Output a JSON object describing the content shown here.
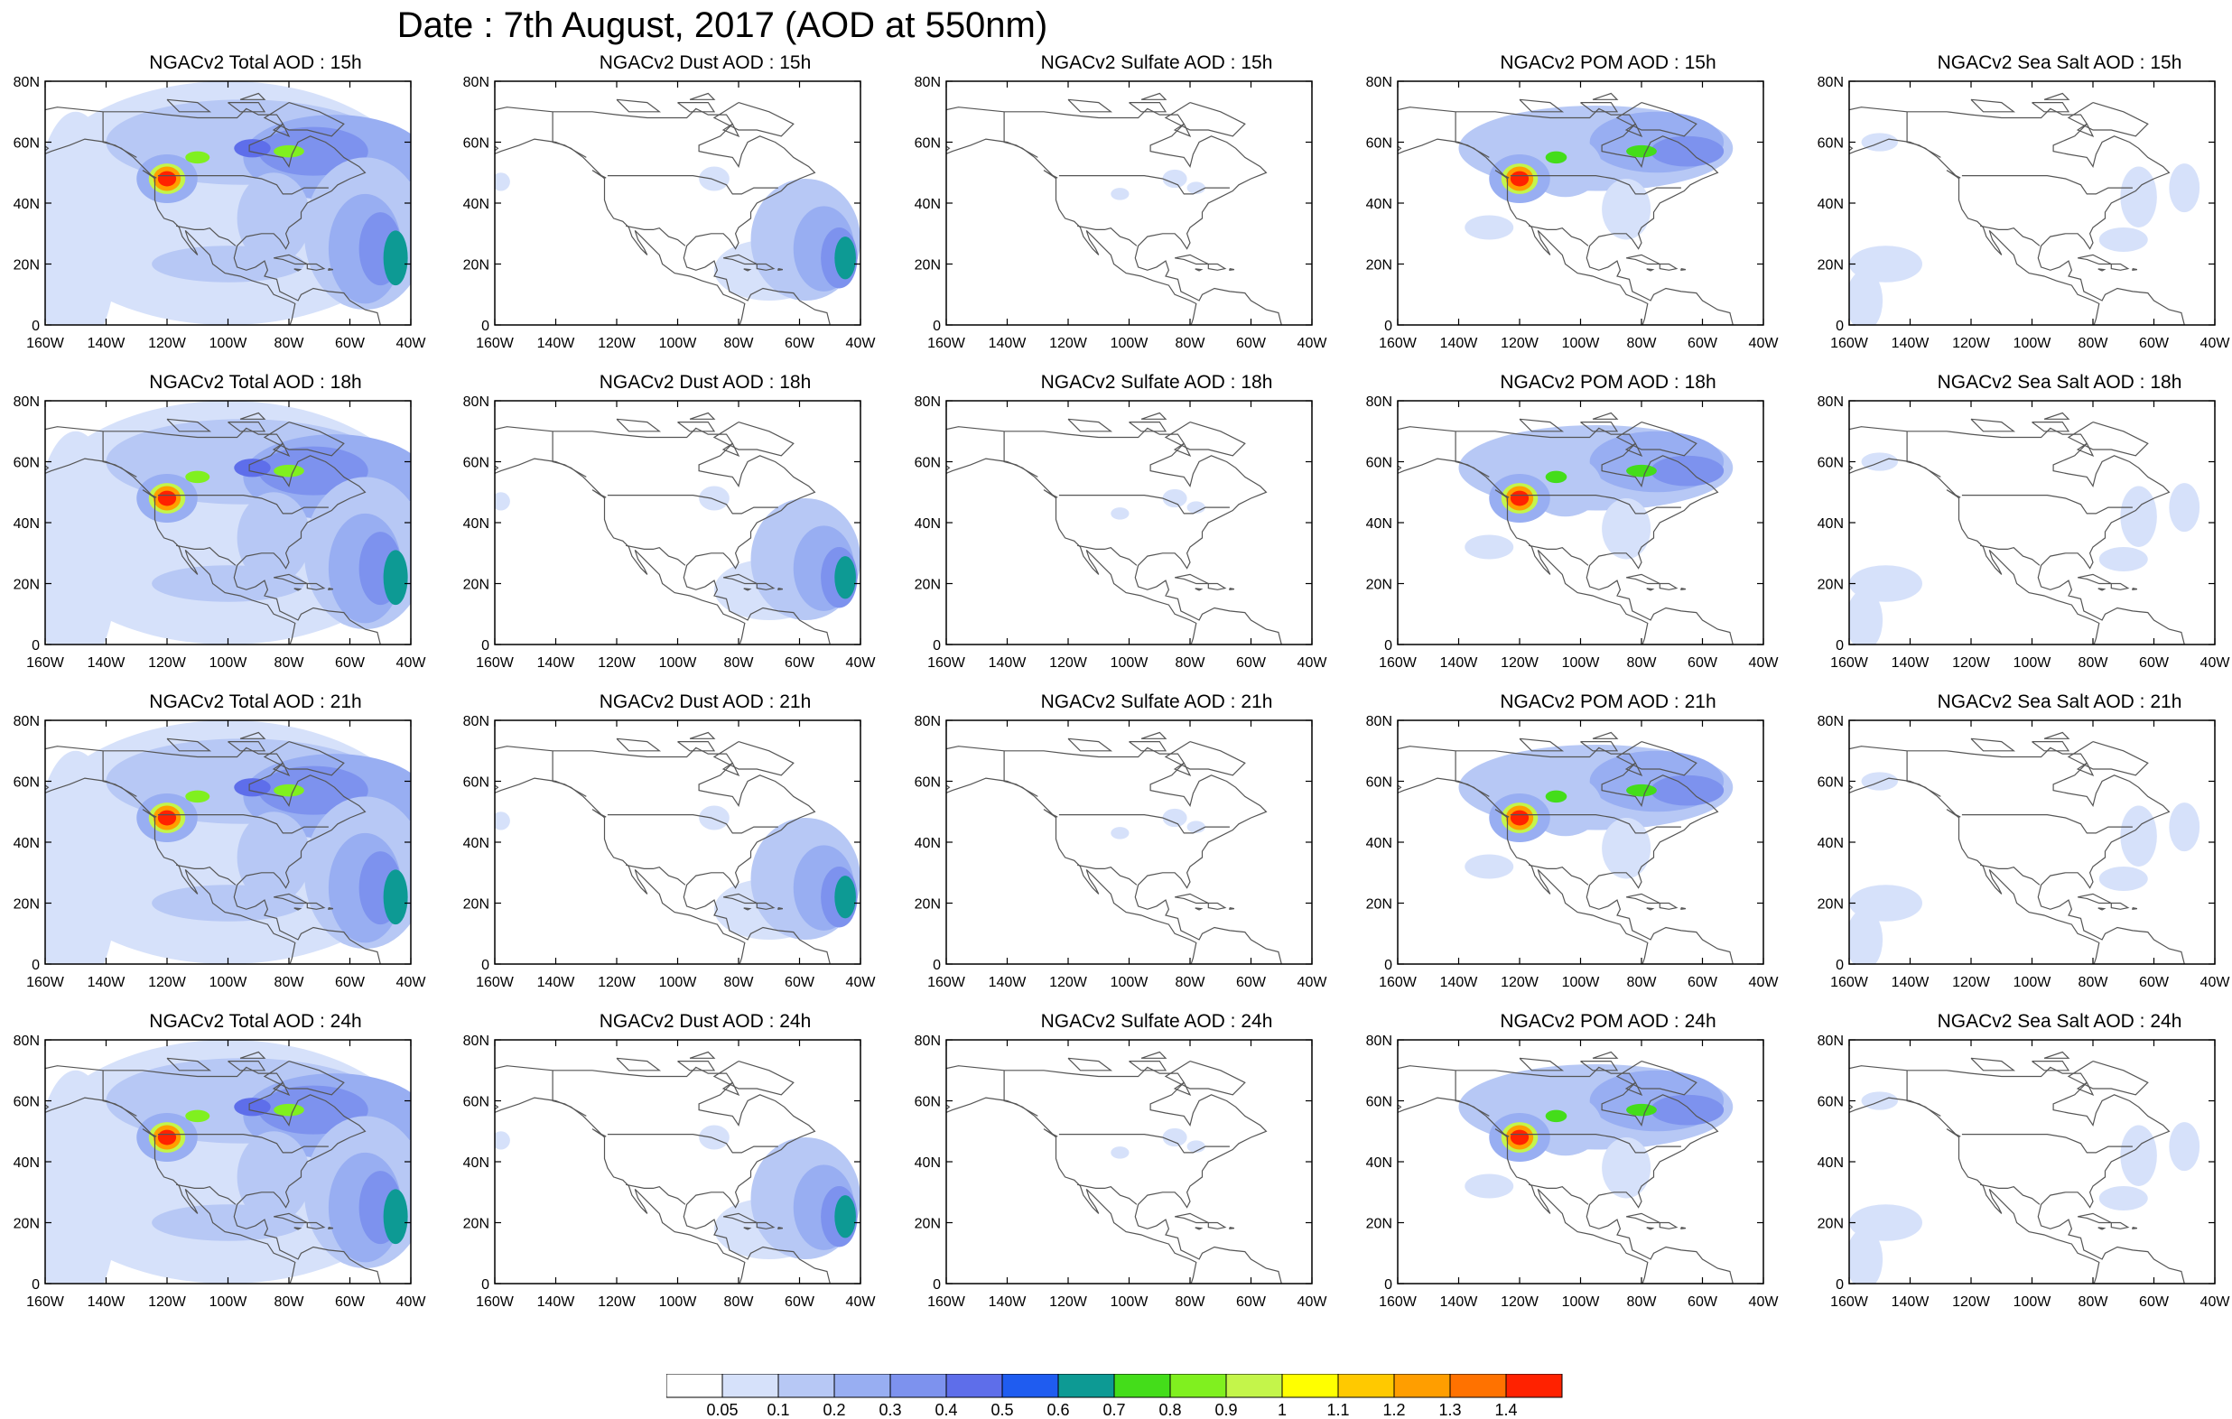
{
  "title": "Date : 7th August, 2017 (AOD at 550nm)",
  "x_ticks": [
    "160W",
    "140W",
    "120W",
    "100W",
    "80W",
    "60W",
    "40W"
  ],
  "y_ticks": [
    "80N",
    "60N",
    "40N",
    "20N",
    "0"
  ],
  "colorbar": {
    "labels": [
      "0.05",
      "0.1",
      "0.2",
      "0.3",
      "0.4",
      "0.5",
      "0.6",
      "0.7",
      "0.8",
      "0.9",
      "1",
      "1.1",
      "1.2",
      "1.3",
      "1.4"
    ],
    "colors": [
      "#ffffff",
      "#d6e1fa",
      "#b7c8f5",
      "#98aef2",
      "#7d92ee",
      "#5e6eea",
      "#1f5cf0",
      "#0d9a94",
      "#44dd1a",
      "#80f01f",
      "#c4f54a",
      "#ffff00",
      "#ffc900",
      "#ff9e00",
      "#ff7200",
      "#ff2200"
    ]
  },
  "chart_data": {
    "type": "heatmap",
    "variable": "AOD at 550nm",
    "date": "7th August, 2017",
    "lon_range": [
      -160,
      -40
    ],
    "lat_range": [
      0,
      80
    ],
    "grid": {
      "columns": [
        "NGACv2 Total AOD",
        "NGACv2 Dust AOD",
        "NGACv2 Sulfate AOD",
        "NGACv2 POM AOD",
        "NGACv2 Sea Salt AOD"
      ],
      "rows": [
        "15h",
        "18h",
        "21h",
        "24h"
      ]
    },
    "panels": [
      {
        "title": "NGACv2 Total AOD : 15h"
      },
      {
        "title": "NGACv2 Dust AOD : 15h"
      },
      {
        "title": "NGACv2 Sulfate AOD : 15h"
      },
      {
        "title": "NGACv2 POM AOD : 15h"
      },
      {
        "title": "NGACv2 Sea Salt AOD : 15h"
      },
      {
        "title": "NGACv2 Total AOD : 18h"
      },
      {
        "title": "NGACv2 Dust AOD : 18h"
      },
      {
        "title": "NGACv2 Sulfate AOD : 18h"
      },
      {
        "title": "NGACv2 POM AOD : 18h"
      },
      {
        "title": "NGACv2 Sea Salt AOD : 18h"
      },
      {
        "title": "NGACv2 Total AOD : 21h"
      },
      {
        "title": "NGACv2 Dust AOD : 21h"
      },
      {
        "title": "NGACv2 Sulfate AOD : 21h"
      },
      {
        "title": "NGACv2 POM AOD : 21h"
      },
      {
        "title": "NGACv2 Sea Salt AOD : 21h"
      },
      {
        "title": "NGACv2 Total AOD : 24h"
      },
      {
        "title": "NGACv2 Dust AOD : 24h"
      },
      {
        "title": "NGACv2 Sulfate AOD : 24h"
      },
      {
        "title": "NGACv2 POM AOD : 24h"
      },
      {
        "title": "NGACv2 Sea Salt  AOD : 24h"
      }
    ]
  }
}
